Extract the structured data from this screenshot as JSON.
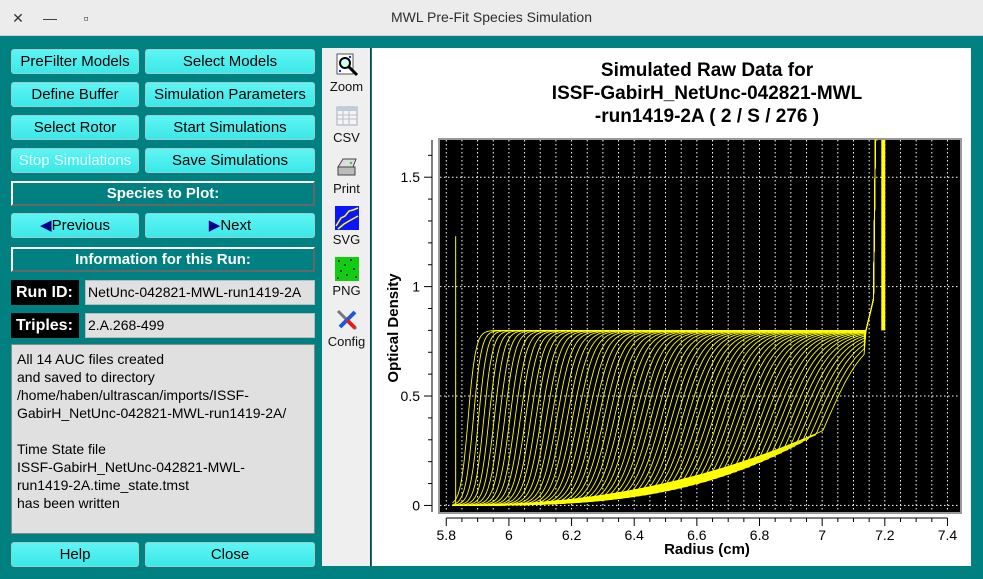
{
  "window": {
    "title": "MWL Pre-Fit Species Simulation",
    "close": "✕",
    "minimize": "—",
    "maximize": "▫"
  },
  "buttons": {
    "prefilter": "PreFilter Models",
    "select_models": "Select Models",
    "define_buffer": "Define Buffer",
    "sim_params": "Simulation Parameters",
    "select_rotor": "Select Rotor",
    "start_sim": "Start Simulations",
    "stop_sim": "Stop Simulations",
    "save_sim": "Save Simulations",
    "previous": "Previous",
    "next": "Next",
    "help": "Help",
    "close": "Close"
  },
  "labels": {
    "species": "Species to Plot:",
    "info": "Information for this Run:",
    "run_id": "Run ID:",
    "triples": "Triples:"
  },
  "fields": {
    "run_id": "NetUnc-042821-MWL-run1419-2A",
    "triples": "2.A.268-499"
  },
  "status_text": "All 14 AUC files created\nand saved to directory\n/home/haben/ultrascan/imports/ISSF-\nGabirH_NetUnc-042821-MWL-run1419-2A/\n\nTime State file\nISSF-GabirH_NetUnc-042821-MWL-\nrun1419-2A.time_state.tmst\nhas been written",
  "tools": [
    {
      "label": "Zoom",
      "icon": "zoom-icon"
    },
    {
      "label": "CSV",
      "icon": "csv-icon"
    },
    {
      "label": "Print",
      "icon": "print-icon"
    },
    {
      "label": "SVG",
      "icon": "svg-icon"
    },
    {
      "label": "PNG",
      "icon": "png-icon"
    },
    {
      "label": "Config",
      "icon": "config-icon"
    }
  ],
  "chart_data": {
    "type": "line",
    "title_lines": [
      "Simulated Raw Data for",
      "ISSF-GabirH_NetUnc-042821-MWL",
      "-run1419-2A ( 2 / S / 276 )"
    ],
    "xlabel": "Radius (cm)",
    "ylabel": "Optical Density",
    "xlim": [
      5.78,
      7.44
    ],
    "ylim": [
      -0.03,
      1.67
    ],
    "xticks": [
      5.8,
      6,
      6.2,
      6.4,
      6.6,
      6.8,
      7,
      7.2,
      7.4
    ],
    "xtick_labels": [
      "5.8",
      "6",
      "6.2",
      "6.4",
      "6.6",
      "6.8",
      "7",
      "7.2",
      "7.4"
    ],
    "yticks": [
      0,
      0.5,
      1,
      1.5
    ],
    "ytick_labels": [
      "0",
      "0.5",
      "1",
      "1.5"
    ],
    "grid": true,
    "series_color": "#ffff00",
    "background": "#000000",
    "simulation": {
      "scans": 70,
      "meniscus": 5.82,
      "bottom": 7.18,
      "plateau": 0.8,
      "baseline_at_bottom": 0.45,
      "max_od": 1.67
    }
  }
}
